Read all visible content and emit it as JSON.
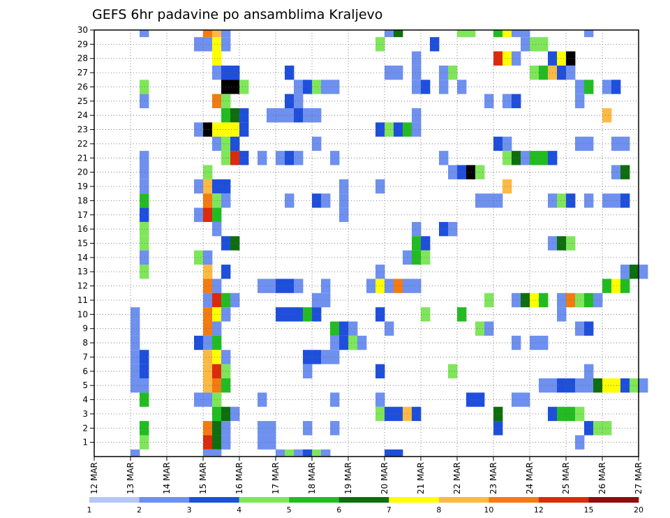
{
  "chart_data": {
    "type": "heatmap",
    "title": "GEFS 6hr padavine po ansamblima Kraljevo",
    "xlabel": "",
    "ylabel": "",
    "x_ticks": [
      "12 MAR",
      "13 MAR",
      "14 MAR",
      "15 MAR",
      "16 MAR",
      "17 MAR",
      "18 MAR",
      "19 MAR",
      "20 MAR",
      "21 MAR",
      "22 MAR",
      "23 MAR",
      "24 MAR",
      "25 MAR",
      "26 MAR",
      "27 MAR"
    ],
    "y_ticks": [
      "1",
      "2",
      "3",
      "4",
      "5",
      "6",
      "7",
      "8",
      "9",
      "10",
      "11",
      "12",
      "13",
      "14",
      "15",
      "16",
      "17",
      "18",
      "19",
      "20",
      "21",
      "22",
      "23",
      "24",
      "25",
      "26",
      "27",
      "28",
      "29",
      "30"
    ],
    "x_range_days": [
      0,
      15
    ],
    "y_range": [
      0,
      30
    ],
    "time_step_hours": 6,
    "grid": true,
    "legend_position": "bottom",
    "colorbar": {
      "labels": [
        "1",
        "2",
        "3",
        "4",
        "5",
        "6",
        "7",
        "8",
        "10",
        "12",
        "15",
        "20"
      ],
      "colors": [
        "#b4c7f5",
        "#6e90ef",
        "#1e4fdc",
        "#7fe65a",
        "#22bc22",
        "#0e6e0e",
        "#ffff00",
        "#fcba44",
        "#f47a12",
        "#dc2a0c",
        "#8c0e0e"
      ]
    },
    "cells": [
      [
        1.25,
        30,
        1
      ],
      [
        3.0,
        30,
        8
      ],
      [
        3.25,
        30,
        7
      ],
      [
        3.5,
        30,
        1
      ],
      [
        8.0,
        30,
        1
      ],
      [
        8.25,
        30,
        5
      ],
      [
        10.0,
        30,
        3
      ],
      [
        10.25,
        30,
        3
      ],
      [
        11.0,
        30,
        4
      ],
      [
        11.25,
        30,
        6
      ],
      [
        11.5,
        30,
        1
      ],
      [
        11.75,
        30,
        1
      ],
      [
        13.5,
        30,
        1
      ],
      [
        2.75,
        29,
        1
      ],
      [
        3.0,
        29,
        1
      ],
      [
        3.25,
        29,
        6
      ],
      [
        3.5,
        29,
        1
      ],
      [
        7.75,
        29,
        3
      ],
      [
        9.25,
        29,
        2
      ],
      [
        11.75,
        29,
        1
      ],
      [
        12.0,
        29,
        3
      ],
      [
        12.25,
        29,
        3
      ],
      [
        3.25,
        28,
        6
      ],
      [
        8.75,
        28,
        1
      ],
      [
        11.0,
        28,
        9
      ],
      [
        11.25,
        28,
        6
      ],
      [
        11.5,
        28,
        1
      ],
      [
        12.5,
        28,
        2
      ],
      [
        12.75,
        28,
        6
      ],
      [
        13.0,
        28,
        11
      ],
      [
        3.25,
        27,
        1
      ],
      [
        3.5,
        27,
        2
      ],
      [
        3.75,
        27,
        2
      ],
      [
        5.25,
        27,
        2
      ],
      [
        8.0,
        27,
        1
      ],
      [
        8.25,
        27,
        1
      ],
      [
        8.75,
        27,
        1
      ],
      [
        9.5,
        27,
        1
      ],
      [
        9.75,
        27,
        3
      ],
      [
        12.0,
        27,
        3
      ],
      [
        12.25,
        27,
        4
      ],
      [
        12.5,
        27,
        7
      ],
      [
        12.75,
        27,
        2
      ],
      [
        13.0,
        27,
        1
      ],
      [
        1.25,
        26,
        3
      ],
      [
        3.5,
        26,
        11
      ],
      [
        3.75,
        26,
        12
      ],
      [
        4.0,
        26,
        3
      ],
      [
        5.5,
        26,
        1
      ],
      [
        5.75,
        26,
        2
      ],
      [
        6.0,
        26,
        3
      ],
      [
        6.25,
        26,
        1
      ],
      [
        6.5,
        26,
        1
      ],
      [
        8.75,
        26,
        1
      ],
      [
        9.0,
        26,
        2
      ],
      [
        9.5,
        26,
        1
      ],
      [
        10.0,
        26,
        1
      ],
      [
        13.25,
        26,
        1
      ],
      [
        13.5,
        26,
        4
      ],
      [
        14.0,
        26,
        1
      ],
      [
        14.25,
        26,
        2
      ],
      [
        1.25,
        25,
        1
      ],
      [
        3.25,
        25,
        8
      ],
      [
        3.5,
        25,
        3
      ],
      [
        5.25,
        25,
        2
      ],
      [
        5.5,
        25,
        1
      ],
      [
        10.75,
        25,
        1
      ],
      [
        11.25,
        25,
        1
      ],
      [
        11.5,
        25,
        2
      ],
      [
        13.25,
        25,
        1
      ],
      [
        3.5,
        24,
        4
      ],
      [
        3.75,
        24,
        5
      ],
      [
        4.0,
        24,
        2
      ],
      [
        4.75,
        24,
        1
      ],
      [
        5.0,
        24,
        1
      ],
      [
        5.25,
        24,
        1
      ],
      [
        5.5,
        24,
        2
      ],
      [
        5.75,
        24,
        1
      ],
      [
        6.0,
        24,
        1
      ],
      [
        8.75,
        24,
        1
      ],
      [
        14.0,
        24,
        7
      ],
      [
        2.75,
        23,
        1
      ],
      [
        3.0,
        23,
        11
      ],
      [
        3.25,
        23,
        6
      ],
      [
        3.5,
        23,
        6
      ],
      [
        3.75,
        23,
        6
      ],
      [
        4.0,
        23,
        2
      ],
      [
        7.75,
        23,
        2
      ],
      [
        8.0,
        23,
        3
      ],
      [
        8.25,
        23,
        2
      ],
      [
        8.5,
        23,
        4
      ],
      [
        8.75,
        23,
        1
      ],
      [
        3.25,
        22,
        1
      ],
      [
        3.5,
        22,
        3
      ],
      [
        3.75,
        22,
        2
      ],
      [
        6.0,
        22,
        1
      ],
      [
        11.0,
        22,
        2
      ],
      [
        11.25,
        22,
        1
      ],
      [
        13.25,
        22,
        1
      ],
      [
        13.5,
        22,
        1
      ],
      [
        14.25,
        22,
        1
      ],
      [
        14.5,
        22,
        1
      ],
      [
        1.25,
        21,
        1
      ],
      [
        3.5,
        21,
        3
      ],
      [
        3.75,
        21,
        9
      ],
      [
        4.0,
        21,
        2
      ],
      [
        4.5,
        21,
        1
      ],
      [
        5.0,
        21,
        1
      ],
      [
        5.25,
        21,
        2
      ],
      [
        5.5,
        21,
        1
      ],
      [
        6.5,
        21,
        1
      ],
      [
        9.5,
        21,
        1
      ],
      [
        11.25,
        21,
        3
      ],
      [
        11.5,
        21,
        5
      ],
      [
        11.75,
        21,
        1
      ],
      [
        12.0,
        21,
        4
      ],
      [
        12.25,
        21,
        4
      ],
      [
        12.5,
        21,
        2
      ],
      [
        1.25,
        20,
        1
      ],
      [
        3.0,
        20,
        3
      ],
      [
        9.75,
        20,
        1
      ],
      [
        10.0,
        20,
        2
      ],
      [
        10.25,
        20,
        11
      ],
      [
        10.5,
        20,
        3
      ],
      [
        14.25,
        20,
        1
      ],
      [
        14.5,
        20,
        5
      ],
      [
        1.25,
        19,
        1
      ],
      [
        2.75,
        19,
        1
      ],
      [
        3.0,
        19,
        7
      ],
      [
        3.25,
        19,
        2
      ],
      [
        3.5,
        19,
        2
      ],
      [
        6.75,
        19,
        1
      ],
      [
        7.75,
        19,
        1
      ],
      [
        11.25,
        19,
        7
      ],
      [
        1.25,
        18,
        4
      ],
      [
        3.0,
        18,
        8
      ],
      [
        3.25,
        18,
        3
      ],
      [
        3.5,
        18,
        1
      ],
      [
        5.25,
        18,
        1
      ],
      [
        6.0,
        18,
        2
      ],
      [
        6.25,
        18,
        1
      ],
      [
        6.75,
        18,
        1
      ],
      [
        10.5,
        18,
        1
      ],
      [
        10.75,
        18,
        1
      ],
      [
        11.0,
        18,
        1
      ],
      [
        12.5,
        18,
        1
      ],
      [
        12.75,
        18,
        3
      ],
      [
        13.0,
        18,
        2
      ],
      [
        13.5,
        18,
        1
      ],
      [
        14.0,
        18,
        1
      ],
      [
        14.25,
        18,
        1
      ],
      [
        14.5,
        18,
        2
      ],
      [
        1.25,
        17,
        2
      ],
      [
        2.75,
        17,
        1
      ],
      [
        3.0,
        17,
        9
      ],
      [
        3.25,
        17,
        4
      ],
      [
        6.75,
        17,
        1
      ],
      [
        1.25,
        16,
        3
      ],
      [
        3.25,
        16,
        1
      ],
      [
        8.75,
        16,
        1
      ],
      [
        9.5,
        16,
        2
      ],
      [
        9.75,
        16,
        1
      ],
      [
        1.25,
        15,
        3
      ],
      [
        3.5,
        15,
        2
      ],
      [
        3.75,
        15,
        5
      ],
      [
        8.75,
        15,
        4
      ],
      [
        9.0,
        15,
        2
      ],
      [
        12.5,
        15,
        1
      ],
      [
        12.75,
        15,
        5
      ],
      [
        13.0,
        15,
        3
      ],
      [
        1.25,
        14,
        1
      ],
      [
        2.75,
        14,
        3
      ],
      [
        3.0,
        14,
        1
      ],
      [
        8.5,
        14,
        1
      ],
      [
        8.75,
        14,
        4
      ],
      [
        9.0,
        14,
        3
      ],
      [
        1.25,
        13,
        3
      ],
      [
        3.0,
        13,
        7
      ],
      [
        3.5,
        13,
        2
      ],
      [
        7.75,
        13,
        1
      ],
      [
        14.5,
        13,
        1
      ],
      [
        14.75,
        13,
        5
      ],
      [
        15.0,
        13,
        1
      ],
      [
        3.0,
        12,
        8
      ],
      [
        3.25,
        12,
        1
      ],
      [
        4.5,
        12,
        1
      ],
      [
        4.75,
        12,
        1
      ],
      [
        5.0,
        12,
        2
      ],
      [
        5.25,
        12,
        2
      ],
      [
        5.5,
        12,
        1
      ],
      [
        6.25,
        12,
        1
      ],
      [
        7.5,
        12,
        1
      ],
      [
        7.75,
        12,
        6
      ],
      [
        8.0,
        12,
        1
      ],
      [
        8.25,
        12,
        8
      ],
      [
        8.5,
        12,
        1
      ],
      [
        8.75,
        12,
        1
      ],
      [
        14.0,
        12,
        4
      ],
      [
        14.25,
        12,
        6
      ],
      [
        14.5,
        12,
        4
      ],
      [
        3.0,
        11,
        1
      ],
      [
        3.25,
        11,
        9
      ],
      [
        3.5,
        11,
        4
      ],
      [
        3.75,
        11,
        1
      ],
      [
        6.0,
        11,
        1
      ],
      [
        6.25,
        11,
        1
      ],
      [
        10.75,
        11,
        3
      ],
      [
        11.5,
        11,
        1
      ],
      [
        11.75,
        11,
        5
      ],
      [
        12.0,
        11,
        6
      ],
      [
        12.25,
        11,
        4
      ],
      [
        12.75,
        11,
        1
      ],
      [
        13.0,
        11,
        8
      ],
      [
        13.25,
        11,
        3
      ],
      [
        13.5,
        11,
        4
      ],
      [
        13.75,
        11,
        1
      ],
      [
        1.0,
        10,
        1
      ],
      [
        3.0,
        10,
        8
      ],
      [
        3.25,
        10,
        6
      ],
      [
        3.5,
        10,
        1
      ],
      [
        5.0,
        10,
        2
      ],
      [
        5.25,
        10,
        2
      ],
      [
        5.5,
        10,
        2
      ],
      [
        5.75,
        10,
        4
      ],
      [
        6.0,
        10,
        2
      ],
      [
        7.75,
        10,
        2
      ],
      [
        9.0,
        10,
        3
      ],
      [
        10.0,
        10,
        4
      ],
      [
        12.75,
        10,
        1
      ],
      [
        1.0,
        9,
        1
      ],
      [
        3.0,
        9,
        8
      ],
      [
        3.25,
        9,
        1
      ],
      [
        6.5,
        9,
        4
      ],
      [
        6.75,
        9,
        2
      ],
      [
        7.0,
        9,
        1
      ],
      [
        8.0,
        9,
        1
      ],
      [
        10.5,
        9,
        3
      ],
      [
        10.75,
        9,
        1
      ],
      [
        13.25,
        9,
        1
      ],
      [
        13.5,
        9,
        2
      ],
      [
        1.0,
        8,
        1
      ],
      [
        2.75,
        8,
        2
      ],
      [
        3.0,
        8,
        1
      ],
      [
        3.25,
        8,
        4
      ],
      [
        6.5,
        8,
        1
      ],
      [
        6.75,
        8,
        2
      ],
      [
        7.0,
        8,
        3
      ],
      [
        7.25,
        8,
        1
      ],
      [
        11.5,
        8,
        1
      ],
      [
        12.0,
        8,
        1
      ],
      [
        12.25,
        8,
        1
      ],
      [
        1.0,
        7,
        1
      ],
      [
        1.25,
        7,
        2
      ],
      [
        3.0,
        7,
        7
      ],
      [
        3.25,
        7,
        6
      ],
      [
        3.5,
        7,
        1
      ],
      [
        5.75,
        7,
        2
      ],
      [
        6.0,
        7,
        2
      ],
      [
        6.25,
        7,
        1
      ],
      [
        6.5,
        7,
        1
      ],
      [
        1.0,
        6,
        1
      ],
      [
        1.25,
        6,
        2
      ],
      [
        3.0,
        6,
        7
      ],
      [
        3.25,
        6,
        9
      ],
      [
        3.5,
        6,
        3
      ],
      [
        5.75,
        6,
        1
      ],
      [
        7.75,
        6,
        2
      ],
      [
        9.75,
        6,
        3
      ],
      [
        13.5,
        6,
        1
      ],
      [
        1.0,
        5,
        1
      ],
      [
        1.25,
        5,
        1
      ],
      [
        3.0,
        5,
        7
      ],
      [
        3.25,
        5,
        8
      ],
      [
        3.5,
        5,
        4
      ],
      [
        12.25,
        5,
        1
      ],
      [
        12.5,
        5,
        1
      ],
      [
        12.75,
        5,
        2
      ],
      [
        13.0,
        5,
        2
      ],
      [
        13.25,
        5,
        1
      ],
      [
        13.5,
        5,
        1
      ],
      [
        13.75,
        5,
        5
      ],
      [
        14.0,
        5,
        6
      ],
      [
        14.25,
        5,
        6
      ],
      [
        14.5,
        5,
        2
      ],
      [
        14.75,
        5,
        3
      ],
      [
        15.0,
        5,
        1
      ],
      [
        1.25,
        4,
        4
      ],
      [
        2.75,
        4,
        1
      ],
      [
        3.0,
        4,
        1
      ],
      [
        3.25,
        4,
        3
      ],
      [
        4.5,
        4,
        1
      ],
      [
        6.5,
        4,
        1
      ],
      [
        7.75,
        4,
        1
      ],
      [
        10.25,
        4,
        2
      ],
      [
        10.5,
        4,
        2
      ],
      [
        11.5,
        4,
        1
      ],
      [
        11.75,
        4,
        1
      ],
      [
        3.25,
        3,
        4
      ],
      [
        3.5,
        3,
        5
      ],
      [
        3.75,
        3,
        1
      ],
      [
        7.75,
        3,
        3
      ],
      [
        8.0,
        3,
        2
      ],
      [
        8.25,
        3,
        2
      ],
      [
        8.5,
        3,
        7
      ],
      [
        8.75,
        3,
        2
      ],
      [
        11.0,
        3,
        5
      ],
      [
        12.5,
        3,
        2
      ],
      [
        12.75,
        3,
        4
      ],
      [
        13.0,
        3,
        4
      ],
      [
        13.25,
        3,
        3
      ],
      [
        1.25,
        2,
        4
      ],
      [
        3.0,
        2,
        8
      ],
      [
        3.25,
        2,
        5
      ],
      [
        3.5,
        2,
        1
      ],
      [
        4.5,
        2,
        1
      ],
      [
        4.75,
        2,
        1
      ],
      [
        5.75,
        2,
        1
      ],
      [
        6.5,
        2,
        1
      ],
      [
        11.0,
        2,
        2
      ],
      [
        13.5,
        2,
        2
      ],
      [
        13.75,
        2,
        3
      ],
      [
        14.0,
        2,
        3
      ],
      [
        1.25,
        1,
        3
      ],
      [
        3.0,
        1,
        9
      ],
      [
        3.25,
        1,
        5
      ],
      [
        3.5,
        1,
        1
      ],
      [
        4.5,
        1,
        1
      ],
      [
        4.75,
        1,
        1
      ],
      [
        13.25,
        1,
        1
      ],
      [
        1.0,
        0,
        1
      ],
      [
        3.0,
        0,
        1
      ],
      [
        3.25,
        0,
        1
      ],
      [
        5.0,
        0,
        1
      ],
      [
        5.25,
        0,
        3
      ],
      [
        5.5,
        0,
        1
      ],
      [
        5.75,
        0,
        2
      ],
      [
        6.0,
        0,
        3
      ],
      [
        6.25,
        0,
        1
      ],
      [
        8.0,
        0,
        2
      ],
      [
        8.25,
        0,
        2
      ]
    ]
  }
}
